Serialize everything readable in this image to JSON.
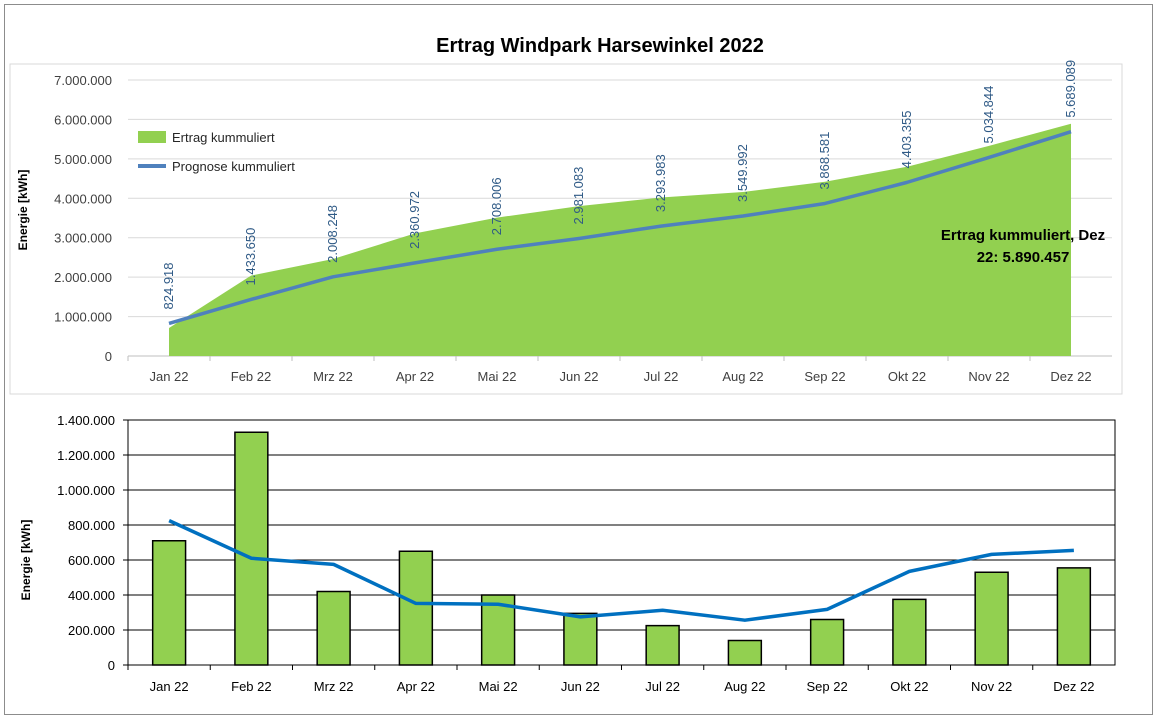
{
  "chart_data": [
    {
      "type": "area",
      "title": "Ertrag Windpark Harsewinkel 2022",
      "ylabel": "Energie [kWh]",
      "xlabel": "",
      "categories": [
        "Jan 22",
        "Feb 22",
        "Mrz 22",
        "Apr 22",
        "Mai 22",
        "Jun 22",
        "Jul 22",
        "Aug 22",
        "Sep 22",
        "Okt 22",
        "Nov 22",
        "Dez 22"
      ],
      "ylim": [
        0,
        7000000
      ],
      "yticks": [
        0,
        1000000,
        2000000,
        3000000,
        4000000,
        5000000,
        6000000,
        7000000
      ],
      "ytick_labels": [
        "0",
        "1.000.000",
        "2.000.000",
        "3.000.000",
        "4.000.000",
        "5.000.000",
        "6.000.000",
        "7.000.000"
      ],
      "grid": true,
      "legend_position": "top-left",
      "series": [
        {
          "name": "Ertrag kummuliert",
          "kind": "area",
          "color": "#92d050",
          "values": [
            710000,
            2040000,
            2460000,
            3110000,
            3510000,
            3800000,
            4020000,
            4160000,
            4420000,
            4800000,
            5330000,
            5890457
          ]
        },
        {
          "name": "Prognose kummuliert",
          "kind": "line",
          "color": "#4f81bd",
          "values": [
            824918,
            1433650,
            2008248,
            2360972,
            2708006,
            2981083,
            3293983,
            3549992,
            3868581,
            4403355,
            5034844,
            5689089
          ],
          "labels": [
            "824.918",
            "1.433.650",
            "2.008.248",
            "2.360.972",
            "2.708.006",
            "2.981.083",
            "3.293.983",
            "3.549.992",
            "3.868.581",
            "4.403.355",
            "5.034.844",
            "5.689.089"
          ]
        }
      ],
      "annotation": {
        "line1": "Ertrag kummuliert, Dez",
        "line2": "22: 5.890.457"
      }
    },
    {
      "type": "bar",
      "title": "",
      "ylabel": "Energie [kWh]",
      "xlabel": "",
      "categories": [
        "Jan 22",
        "Feb 22",
        "Mrz 22",
        "Apr 22",
        "Mai 22",
        "Jun 22",
        "Jul 22",
        "Aug 22",
        "Sep 22",
        "Okt 22",
        "Nov 22",
        "Dez 22"
      ],
      "ylim": [
        0,
        1400000
      ],
      "yticks": [
        0,
        200000,
        400000,
        600000,
        800000,
        1000000,
        1200000,
        1400000
      ],
      "ytick_labels": [
        "0",
        "200.000",
        "400.000",
        "600.000",
        "800.000",
        "1.000.000",
        "1.200.000",
        "1.400.000"
      ],
      "grid": true,
      "series": [
        {
          "kind": "bar",
          "color": "#92d050",
          "values": [
            710000,
            1330000,
            420000,
            650000,
            400000,
            295000,
            225000,
            140000,
            260000,
            375000,
            530000,
            555000
          ]
        },
        {
          "kind": "line",
          "color": "#0070c0",
          "values": [
            825000,
            610000,
            575000,
            352000,
            347000,
            275000,
            313000,
            256000,
            318000,
            535000,
            632000,
            655000
          ]
        }
      ]
    }
  ]
}
